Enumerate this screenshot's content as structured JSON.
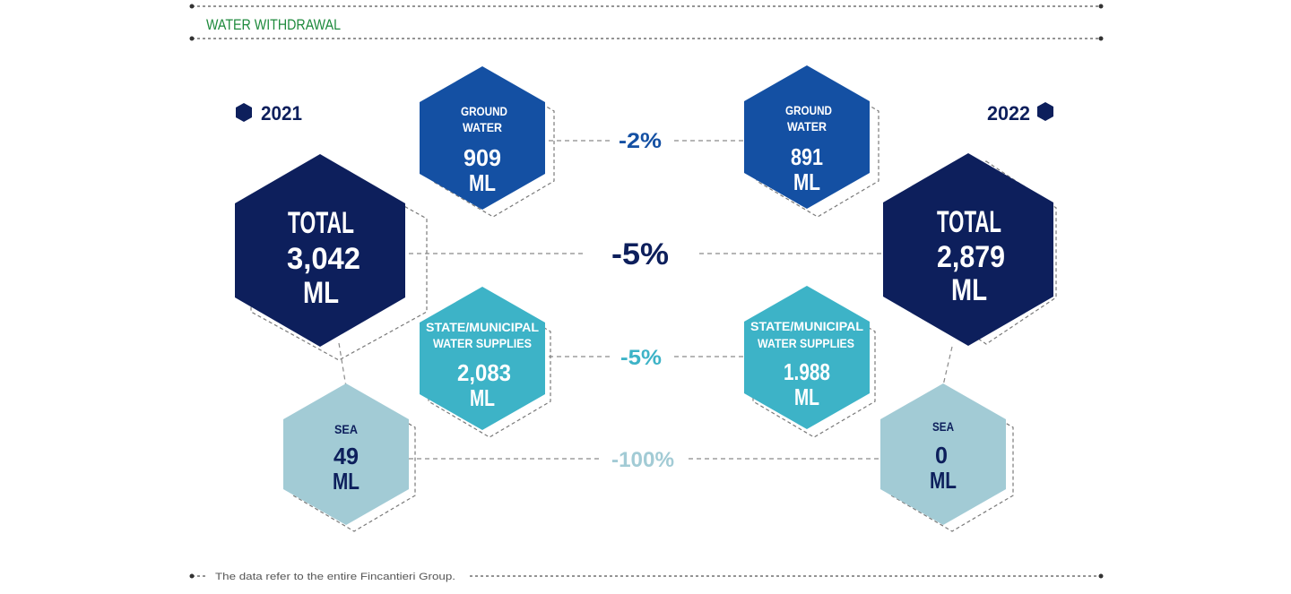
{
  "header": {
    "title": "WATER WITHDRAWAL"
  },
  "footer": {
    "note": "The data refer to the entire Fincantieri Group."
  },
  "colors": {
    "title_green": "#1e8a3c",
    "total": "#0d1f5c",
    "ground": "#1450a3",
    "municipal": "#3db3c7",
    "sea": "#a2cbd5",
    "sea_text": "#0d1f5c",
    "dash": "#8a8a8a"
  },
  "years": {
    "left": "2021",
    "right": "2022"
  },
  "left": {
    "ground": {
      "label_1": "GROUND",
      "label_2": "WATER",
      "value": "909",
      "unit": "ML"
    },
    "total": {
      "label": "TOTAL",
      "value": "3,042",
      "unit": "ML"
    },
    "municipal": {
      "label_1": "STATE/MUNICIPAL",
      "label_2": "WATER SUPPLIES",
      "value": "2,083",
      "unit": "ML"
    },
    "sea": {
      "label": "SEA",
      "value": "49",
      "unit": "ML"
    }
  },
  "right": {
    "ground": {
      "label_1": "GROUND",
      "label_2": "WATER",
      "value": "891",
      "unit": "ML"
    },
    "total": {
      "label": "TOTAL",
      "value": "2,879",
      "unit": "ML"
    },
    "municipal": {
      "label_1": "STATE/MUNICIPAL",
      "label_2": "WATER SUPPLIES",
      "value": "1.988",
      "unit": "ML"
    },
    "sea": {
      "label": "SEA",
      "value": "0",
      "unit": "ML"
    }
  },
  "changes": {
    "ground": "-2%",
    "total": "-5%",
    "municipal": "-5%",
    "sea": "-100%"
  }
}
